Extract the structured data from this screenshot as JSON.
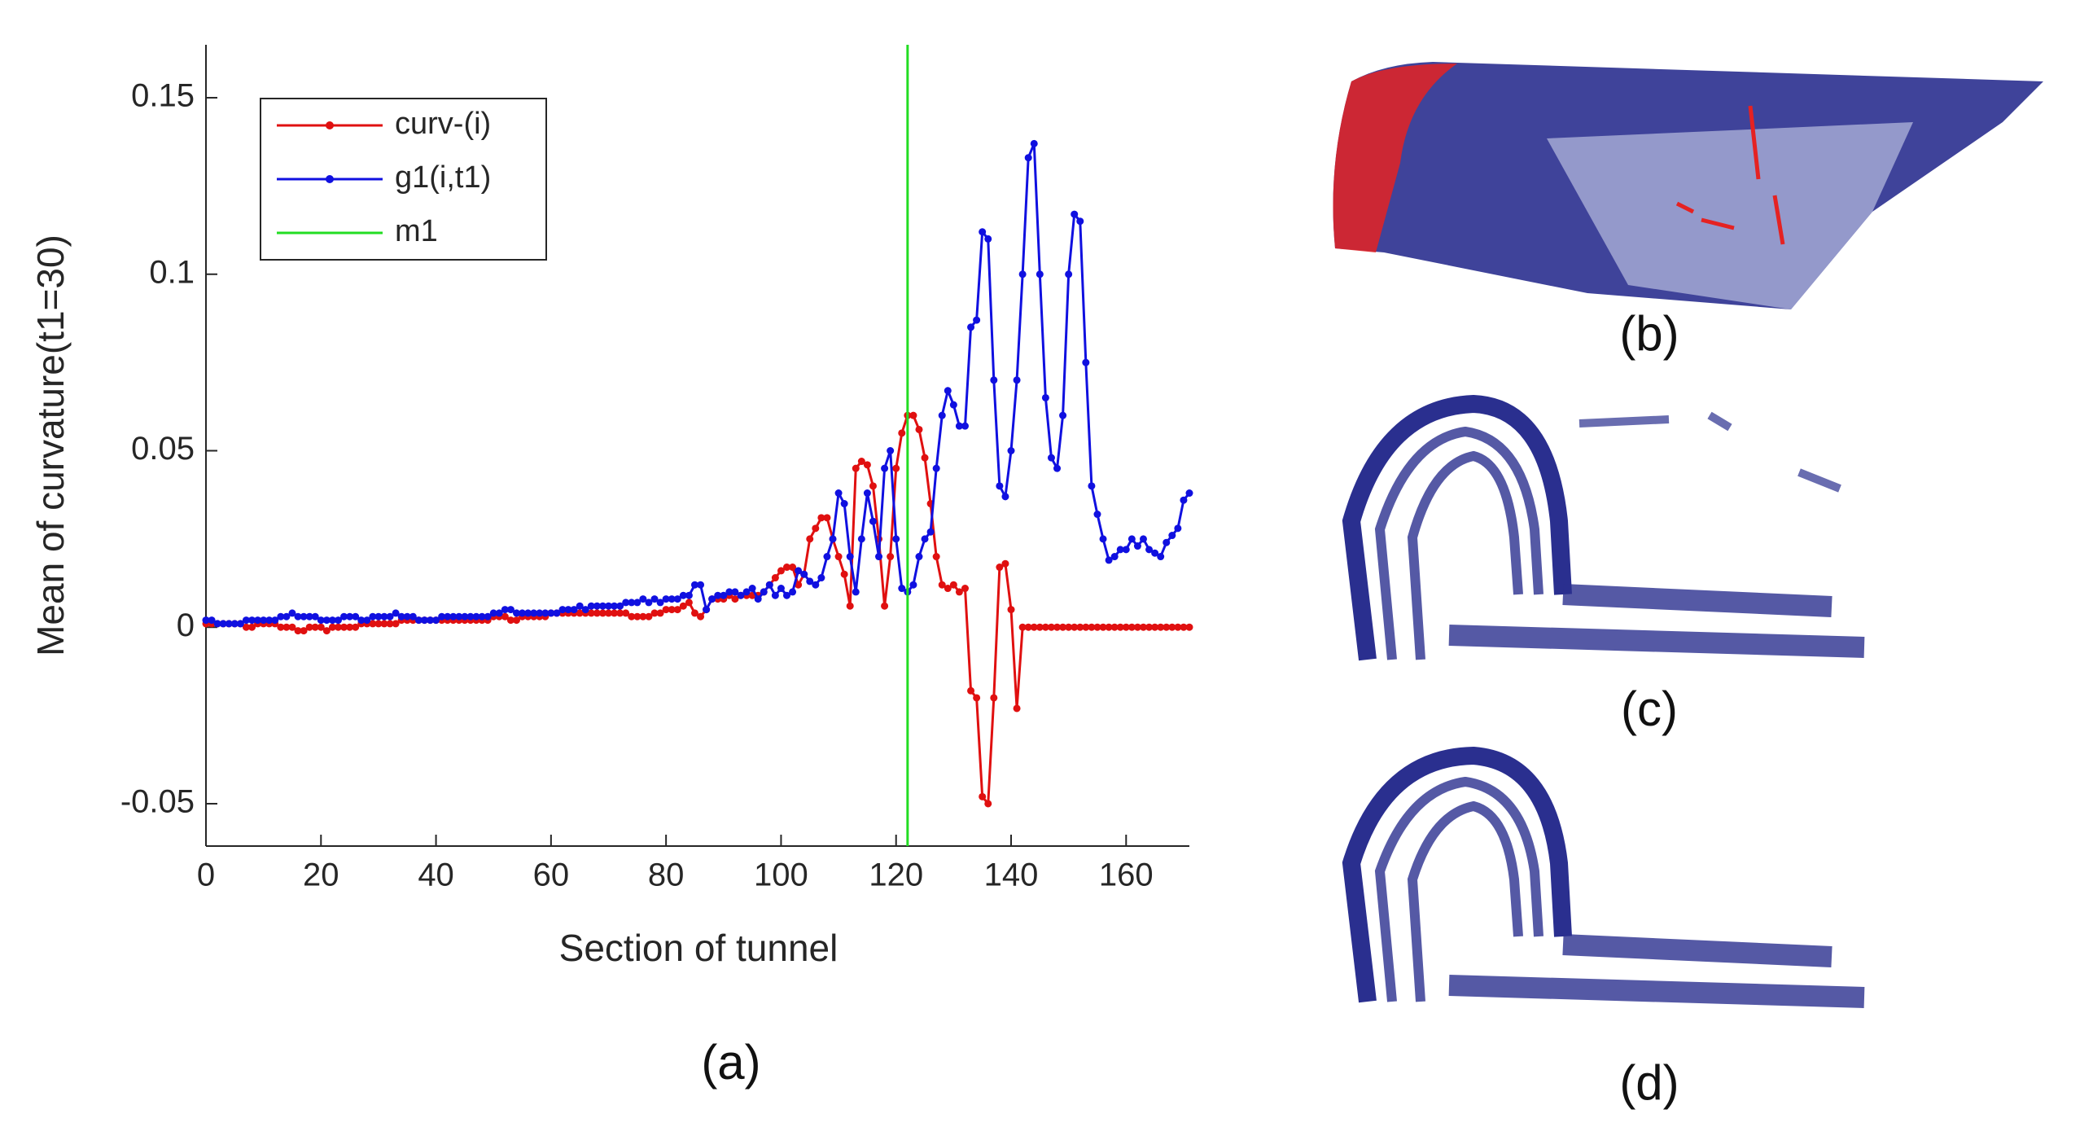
{
  "chart_data": {
    "type": "line",
    "xlabel": "Section of tunnel",
    "ylabel": "Mean of curvature(t1=30)",
    "caption": "(a)",
    "x": [
      0,
      1,
      2,
      3,
      4,
      5,
      6,
      7,
      8,
      9,
      10,
      11,
      12,
      13,
      14,
      15,
      16,
      17,
      18,
      19,
      20,
      21,
      22,
      23,
      24,
      25,
      26,
      27,
      28,
      29,
      30,
      31,
      32,
      33,
      34,
      35,
      36,
      37,
      38,
      39,
      40,
      41,
      42,
      43,
      44,
      45,
      46,
      47,
      48,
      49,
      50,
      51,
      52,
      53,
      54,
      55,
      56,
      57,
      58,
      59,
      60,
      61,
      62,
      63,
      64,
      65,
      66,
      67,
      68,
      69,
      70,
      71,
      72,
      73,
      74,
      75,
      76,
      77,
      78,
      79,
      80,
      81,
      82,
      83,
      84,
      85,
      86,
      87,
      88,
      89,
      90,
      91,
      92,
      93,
      94,
      95,
      96,
      97,
      98,
      99,
      100,
      101,
      102,
      103,
      104,
      105,
      106,
      107,
      108,
      109,
      110,
      111,
      112,
      113,
      114,
      115,
      116,
      117,
      118,
      119,
      120,
      121,
      122,
      123,
      124,
      125,
      126,
      127,
      128,
      129,
      130,
      131,
      132,
      133,
      134,
      135,
      136,
      137,
      138,
      139,
      140,
      141,
      142,
      143,
      144,
      145,
      146,
      147,
      148,
      149,
      150,
      151,
      152,
      153,
      154,
      155,
      156,
      157,
      158,
      159,
      160,
      161,
      162,
      163,
      164,
      165,
      166,
      167,
      168,
      169,
      170,
      171
    ],
    "series": [
      {
        "name": "curv-(i)",
        "color": "#e01010",
        "values": [
          0.001,
          0.001,
          0.001,
          0.001,
          0.001,
          0.001,
          0.001,
          0.0,
          0.0,
          0.001,
          0.001,
          0.001,
          0.001,
          0.0,
          0.0,
          0.0,
          -0.001,
          -0.001,
          0.0,
          0.0,
          0.0,
          -0.001,
          0.0,
          0.0,
          0.0,
          0.0,
          0.0,
          0.001,
          0.001,
          0.001,
          0.001,
          0.001,
          0.001,
          0.001,
          0.002,
          0.002,
          0.002,
          0.002,
          0.002,
          0.002,
          0.002,
          0.002,
          0.002,
          0.002,
          0.002,
          0.002,
          0.002,
          0.002,
          0.002,
          0.002,
          0.003,
          0.003,
          0.003,
          0.002,
          0.002,
          0.003,
          0.003,
          0.003,
          0.003,
          0.003,
          0.004,
          0.004,
          0.004,
          0.004,
          0.004,
          0.004,
          0.004,
          0.004,
          0.004,
          0.004,
          0.004,
          0.004,
          0.004,
          0.004,
          0.003,
          0.003,
          0.003,
          0.003,
          0.004,
          0.004,
          0.005,
          0.005,
          0.005,
          0.006,
          0.007,
          0.004,
          0.003,
          0.005,
          0.008,
          0.008,
          0.008,
          0.009,
          0.008,
          0.009,
          0.009,
          0.009,
          0.009,
          0.01,
          0.012,
          0.014,
          0.016,
          0.017,
          0.017,
          0.012,
          0.015,
          0.025,
          0.028,
          0.031,
          0.031,
          0.025,
          0.02,
          0.015,
          0.006,
          0.045,
          0.047,
          0.046,
          0.04,
          0.025,
          0.006,
          0.02,
          0.045,
          0.055,
          0.06,
          0.06,
          0.056,
          0.048,
          0.035,
          0.02,
          0.012,
          0.011,
          0.012,
          0.01,
          0.011,
          -0.018,
          -0.02,
          -0.048,
          -0.05,
          -0.02,
          0.017,
          0.018,
          0.005,
          -0.023,
          0,
          0,
          0,
          0,
          0,
          0,
          0,
          0,
          0,
          0,
          0,
          0,
          0,
          0,
          0,
          0,
          0,
          0,
          0,
          0,
          0,
          0,
          0,
          0,
          0,
          0,
          0,
          0,
          0,
          0
        ]
      },
      {
        "name": "g1(i,t1)",
        "color": "#1010e0",
        "values": [
          0.002,
          0.002,
          0.001,
          0.001,
          0.001,
          0.001,
          0.001,
          0.002,
          0.002,
          0.002,
          0.002,
          0.002,
          0.002,
          0.003,
          0.003,
          0.004,
          0.003,
          0.003,
          0.003,
          0.003,
          0.002,
          0.002,
          0.002,
          0.002,
          0.003,
          0.003,
          0.003,
          0.002,
          0.002,
          0.003,
          0.003,
          0.003,
          0.003,
          0.004,
          0.003,
          0.003,
          0.003,
          0.002,
          0.002,
          0.002,
          0.002,
          0.003,
          0.003,
          0.003,
          0.003,
          0.003,
          0.003,
          0.003,
          0.003,
          0.003,
          0.004,
          0.004,
          0.005,
          0.005,
          0.004,
          0.004,
          0.004,
          0.004,
          0.004,
          0.004,
          0.004,
          0.004,
          0.005,
          0.005,
          0.005,
          0.006,
          0.005,
          0.006,
          0.006,
          0.006,
          0.006,
          0.006,
          0.006,
          0.007,
          0.007,
          0.007,
          0.008,
          0.007,
          0.008,
          0.007,
          0.008,
          0.008,
          0.008,
          0.009,
          0.009,
          0.012,
          0.012,
          0.005,
          0.008,
          0.009,
          0.009,
          0.01,
          0.01,
          0.009,
          0.01,
          0.011,
          0.008,
          0.01,
          0.012,
          0.009,
          0.011,
          0.009,
          0.01,
          0.016,
          0.015,
          0.013,
          0.012,
          0.014,
          0.02,
          0.025,
          0.038,
          0.035,
          0.02,
          0.01,
          0.025,
          0.038,
          0.03,
          0.02,
          0.045,
          0.05,
          0.025,
          0.011,
          0.01,
          0.012,
          0.02,
          0.025,
          0.027,
          0.045,
          0.06,
          0.067,
          0.063,
          0.057,
          0.057,
          0.085,
          0.087,
          0.112,
          0.11,
          0.07,
          0.04,
          0.037,
          0.05,
          0.07,
          0.1,
          0.133,
          0.137,
          0.1,
          0.065,
          0.048,
          0.045,
          0.06,
          0.1,
          0.117,
          0.115,
          0.075,
          0.04,
          0.032,
          0.025,
          0.019,
          0.02,
          0.022,
          0.022,
          0.025,
          0.023,
          0.025,
          0.022,
          0.021,
          0.02,
          0.024,
          0.026,
          0.028,
          0.036,
          0.038
        ]
      }
    ],
    "vlines": [
      {
        "name": "m1",
        "color": "#22dd22",
        "x": 122
      }
    ],
    "xlim": [
      0,
      171
    ],
    "xticks": [
      0,
      20,
      40,
      60,
      80,
      100,
      120,
      140,
      160
    ],
    "ylim": [
      -0.062,
      0.165
    ],
    "yticks": [
      -0.05,
      0,
      0.05,
      0.1,
      0.15
    ],
    "legend": "upper left"
  },
  "panels": [
    "(b)",
    "(c)",
    "(d)"
  ]
}
